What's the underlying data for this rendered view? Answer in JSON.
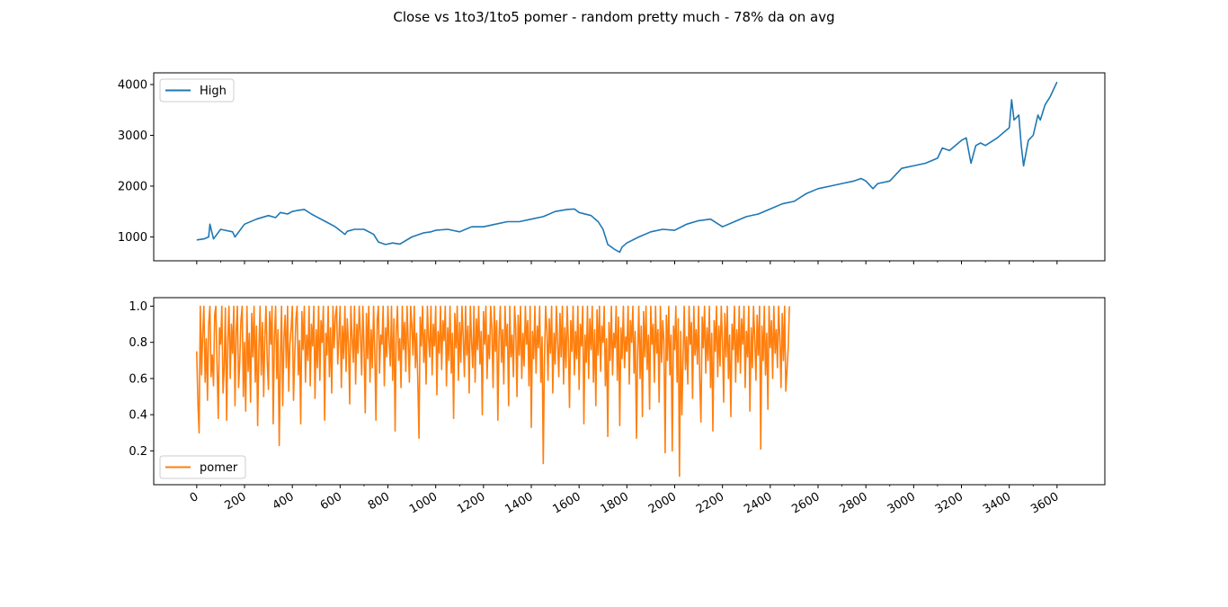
{
  "figure": {
    "title": "Close vs 1to3/1to5 pomer - random pretty much - 78% da on avg"
  },
  "chart_data": [
    {
      "type": "line",
      "xlim": [
        -180,
        3800
      ],
      "ylim": [
        530,
        4230
      ],
      "x_ticks": [
        0,
        200,
        400,
        600,
        800,
        1000,
        1200,
        1400,
        1600,
        1800,
        2000,
        2200,
        2400,
        2600,
        2800,
        3000,
        3200,
        3400,
        3600
      ],
      "x_tick_labels": [
        "0",
        "200",
        "400",
        "600",
        "800",
        "1000",
        "1200",
        "1400",
        "1600",
        "1800",
        "2000",
        "2200",
        "2400",
        "2600",
        "2800",
        "3000",
        "3200",
        "3400",
        "3600"
      ],
      "x_minor_ticks": [
        100,
        300,
        500,
        700,
        900,
        1100,
        1300,
        1500,
        1700,
        1900,
        2100,
        2300,
        2500,
        2700,
        2900,
        3100,
        3300,
        3500
      ],
      "y_ticks": [
        1000,
        2000,
        3000,
        4000
      ],
      "y_tick_labels": [
        "1000",
        "2000",
        "3000",
        "4000"
      ],
      "legend": "top-left",
      "grid": false,
      "series": [
        {
          "name": "High",
          "color": "#1f77b4",
          "x": [
            0,
            30,
            50,
            55,
            70,
            100,
            150,
            160,
            200,
            250,
            300,
            330,
            350,
            380,
            400,
            420,
            450,
            480,
            500,
            540,
            580,
            620,
            630,
            660,
            700,
            740,
            760,
            790,
            820,
            850,
            900,
            950,
            980,
            1000,
            1050,
            1100,
            1150,
            1200,
            1250,
            1300,
            1350,
            1400,
            1450,
            1500,
            1550,
            1580,
            1600,
            1650,
            1680,
            1700,
            1720,
            1750,
            1770,
            1780,
            1800,
            1850,
            1900,
            1950,
            2000,
            2050,
            2100,
            2150,
            2200,
            2250,
            2300,
            2350,
            2400,
            2450,
            2500,
            2550,
            2600,
            2650,
            2700,
            2750,
            2780,
            2800,
            2830,
            2850,
            2900,
            2950,
            3000,
            3050,
            3100,
            3120,
            3150,
            3200,
            3220,
            3240,
            3260,
            3280,
            3300,
            3350,
            3400,
            3410,
            3420,
            3440,
            3450,
            3460,
            3480,
            3500,
            3520,
            3530,
            3550,
            3570,
            3600
          ],
          "values": [
            940,
            960,
            1000,
            1250,
            960,
            1150,
            1100,
            1000,
            1250,
            1350,
            1420,
            1380,
            1480,
            1450,
            1500,
            1520,
            1540,
            1450,
            1400,
            1300,
            1200,
            1050,
            1110,
            1150,
            1150,
            1050,
            900,
            850,
            880,
            860,
            1000,
            1080,
            1100,
            1130,
            1150,
            1100,
            1200,
            1200,
            1250,
            1300,
            1300,
            1350,
            1400,
            1500,
            1540,
            1550,
            1480,
            1420,
            1300,
            1150,
            850,
            750,
            700,
            800,
            880,
            1000,
            1100,
            1150,
            1130,
            1250,
            1320,
            1350,
            1200,
            1300,
            1400,
            1450,
            1550,
            1650,
            1700,
            1850,
            1950,
            2000,
            2050,
            2100,
            2150,
            2100,
            1950,
            2050,
            2100,
            2350,
            2400,
            2450,
            2550,
            2750,
            2700,
            2900,
            2950,
            2450,
            2800,
            2850,
            2800,
            2950,
            3150,
            3700,
            3300,
            3400,
            2800,
            2400,
            2900,
            3000,
            3400,
            3300,
            3600,
            3750,
            4050
          ]
        }
      ]
    },
    {
      "type": "line",
      "xlim": [
        -180,
        3800
      ],
      "ylim": [
        0.013,
        1.047
      ],
      "x_ticks": [
        0,
        200,
        400,
        600,
        800,
        1000,
        1200,
        1400,
        1600,
        1800,
        2000,
        2200,
        2400,
        2600,
        2800,
        3000,
        3200,
        3400,
        3600
      ],
      "x_tick_labels": [
        "0",
        "200",
        "400",
        "600",
        "800",
        "1000",
        "1200",
        "1400",
        "1600",
        "1800",
        "2000",
        "2200",
        "2400",
        "2600",
        "2800",
        "3000",
        "3200",
        "3400",
        "3600"
      ],
      "x_minor_ticks": [
        100,
        300,
        500,
        700,
        900,
        1100,
        1300,
        1500,
        1700,
        1900,
        2100,
        2300,
        2500,
        2700,
        2900,
        3100,
        3300,
        3500
      ],
      "y_ticks": [
        0.2,
        0.4,
        0.6,
        0.8,
        1.0
      ],
      "y_tick_labels": [
        "0.2",
        "0.4",
        "0.6",
        "0.8",
        "1.0"
      ],
      "legend": "lower-left",
      "grid": false,
      "series": [
        {
          "name": "pomer",
          "color": "#ff7f0e",
          "values_x_start": 0,
          "values_x_step": 5,
          "values": [
            0.75,
            0.46,
            0.3,
            1.0,
            0.62,
            0.85,
            1.0,
            0.58,
            0.82,
            0.48,
            0.9,
            1.0,
            0.61,
            0.73,
            0.56,
            0.95,
            1.0,
            0.68,
            0.38,
            0.88,
            0.79,
            1.0,
            0.52,
            0.66,
            0.99,
            0.37,
            0.81,
            1.0,
            0.6,
            0.9,
            0.74,
            1.0,
            0.45,
            0.86,
            1.0,
            0.55,
            0.69,
            0.92,
            1.0,
            0.5,
            0.8,
            0.42,
            1.0,
            0.64,
            0.85,
            0.47,
            0.96,
            0.72,
            1.0,
            0.58,
            0.89,
            0.34,
            0.77,
            1.0,
            0.62,
            0.91,
            0.5,
            0.83,
            1.0,
            0.69,
            0.54,
            0.97,
            0.79,
            1.0,
            0.35,
            0.82,
            1.0,
            0.6,
            0.87,
            0.23,
            0.71,
            1.0,
            0.45,
            0.83,
            0.95,
            0.66,
            1.0,
            0.53,
            0.79,
            0.88,
            1.0,
            0.48,
            0.72,
            0.93,
            1.0,
            0.62,
            0.81,
            0.35,
            0.97,
            0.76,
            1.0,
            0.58,
            0.84,
            0.7,
            1.0,
            0.56,
            0.9,
            0.78,
            1.0,
            0.49,
            0.87,
            0.66,
            1.0,
            0.59,
            0.92,
            0.8,
            1.0,
            0.37,
            0.85,
            0.73,
            1.0,
            0.61,
            0.88,
            0.52,
            1.0,
            0.77,
            0.94,
            1.0,
            0.68,
            0.82,
            1.0,
            0.55,
            0.89,
            0.71,
            1.0,
            0.64,
            0.93,
            0.79,
            0.46,
            1.0,
            0.83,
            0.69,
            1.0,
            0.57,
            0.9,
            0.74,
            1.0,
            0.85,
            0.62,
            1.0,
            0.78,
            0.41,
            0.96,
            0.71,
            1.0,
            0.58,
            0.87,
            0.66,
            1.0,
            0.75,
            0.37,
            0.92,
            1.0,
            0.63,
            0.84,
            0.79,
            1.0,
            0.56,
            0.88,
            0.72,
            1.0,
            0.81,
            0.67,
            1.0,
            0.59,
            0.93,
            0.31,
            0.86,
            1.0,
            0.7,
            0.82,
            0.55,
            1.0,
            0.76,
            0.91,
            0.64,
            1.0,
            0.8,
            0.58,
            1.0,
            0.89,
            0.73,
            1.0,
            0.66,
            0.85,
            0.6,
            0.27,
            0.94,
            0.78,
            1.0,
            0.69,
            0.87,
            0.57,
            1.0,
            0.83,
            0.72,
            1.0,
            0.62,
            0.9,
            0.78,
            1.0,
            0.51,
            0.86,
            0.74,
            1.0,
            0.65,
            0.92,
            0.81,
            1.0,
            0.56,
            0.88,
            0.7,
            1.0,
            0.63,
            0.85,
            0.38,
            0.96,
            0.77,
            1.0,
            0.59,
            0.91,
            0.69,
            1.0,
            0.84,
            0.61,
            1.0,
            0.73,
            0.89,
            0.52,
            1.0,
            0.8,
            0.66,
            1.0,
            0.58,
            0.93,
            0.76,
            1.0,
            0.68,
            0.86,
            0.4,
            0.97,
            0.79,
            1.0,
            0.6,
            0.84,
            0.71,
            1.0,
            0.88,
            0.55,
            1.0,
            0.75,
            0.92,
            0.37,
            0.82,
            1.0,
            0.69,
            0.87,
            0.57,
            1.0,
            0.78,
            0.9,
            0.45,
            1.0,
            0.72,
            0.84,
            0.61,
            1.0,
            0.88,
            0.5,
            0.95,
            0.73,
            1.0,
            0.6,
            0.85,
            0.67,
            1.0,
            0.79,
            0.92,
            0.56,
            1.0,
            0.33,
            0.86,
            0.71,
            1.0,
            0.63,
            0.89,
            0.77,
            1.0,
            0.58,
            0.83,
            0.13,
            0.7,
            1.0,
            0.87,
            0.59,
            0.93,
            0.74,
            1.0,
            0.52,
            0.85,
            0.68,
            1.0,
            0.79,
            0.61,
            0.96,
            0.72,
            1.0,
            0.57,
            0.88,
            0.66,
            1.0,
            0.81,
            0.44,
            0.92,
            0.75,
            1.0,
            0.62,
            0.86,
            0.71,
            1.0,
            0.54,
            0.9,
            0.78,
            1.0,
            0.35,
            0.84,
            0.69,
            1.0,
            0.6,
            0.93,
            0.76,
            1.0,
            0.58,
            0.87,
            0.45,
            0.98,
            0.73,
            1.0,
            0.64,
            0.89,
            0.8,
            1.0,
            0.56,
            0.82,
            0.28,
            0.91,
            0.7,
            1.0,
            0.62,
            0.85,
            0.77,
            1.0,
            0.59,
            0.94,
            0.34,
            0.88,
            0.71,
            1.0,
            0.66,
            0.83,
            0.75,
            1.0,
            0.57,
            0.92,
            0.8,
            1.0,
            0.63,
            0.86,
            0.27,
            0.74,
            1.0,
            0.6,
            0.89,
            0.39,
            0.97,
            0.72,
            1.0,
            0.65,
            0.84,
            0.43,
            1.0,
            0.79,
            0.9,
            0.58,
            1.0,
            0.74,
            0.87,
            0.47,
            1.0,
            0.69,
            0.92,
            0.81,
            0.19,
            0.95,
            0.7,
            1.0,
            0.62,
            0.84,
            0.2,
            0.89,
            0.76,
            1.0,
            0.58,
            0.93,
            0.06,
            0.86,
            0.4,
            0.72,
            1.0,
            0.65,
            0.83,
            0.57,
            1.0,
            0.79,
            0.91,
            0.49,
            1.0,
            0.73,
            0.87,
            0.68,
            1.0,
            0.59,
            0.36,
            0.94,
            0.77,
            1.0,
            0.63,
            0.88,
            0.7,
            1.0,
            0.55,
            0.85,
            0.31,
            0.92,
            0.75,
            1.0,
            0.61,
            0.89,
            0.67,
            1.0,
            0.8,
            0.47,
            0.96,
            0.72,
            1.0,
            0.6,
            0.84,
            0.39,
            0.9,
            0.76,
            1.0,
            0.58,
            0.87,
            0.69,
            1.0,
            0.63,
            0.93,
            0.79,
            1.0,
            0.55,
            0.86,
            0.72,
            1.0,
            0.42,
            0.88,
            0.66,
            1.0,
            0.81,
            0.59,
            0.95,
            0.73,
            1.0,
            0.21,
            0.89,
            0.7,
            1.0,
            0.62,
            0.85,
            0.43,
            1.0,
            0.77,
            0.92,
            0.6,
            1.0,
            0.74,
            0.87,
            0.66,
            1.0,
            0.82,
            0.55,
            0.96,
            0.7,
            1.0,
            0.53,
            0.64,
            0.77,
            1.0
          ]
        }
      ]
    }
  ]
}
